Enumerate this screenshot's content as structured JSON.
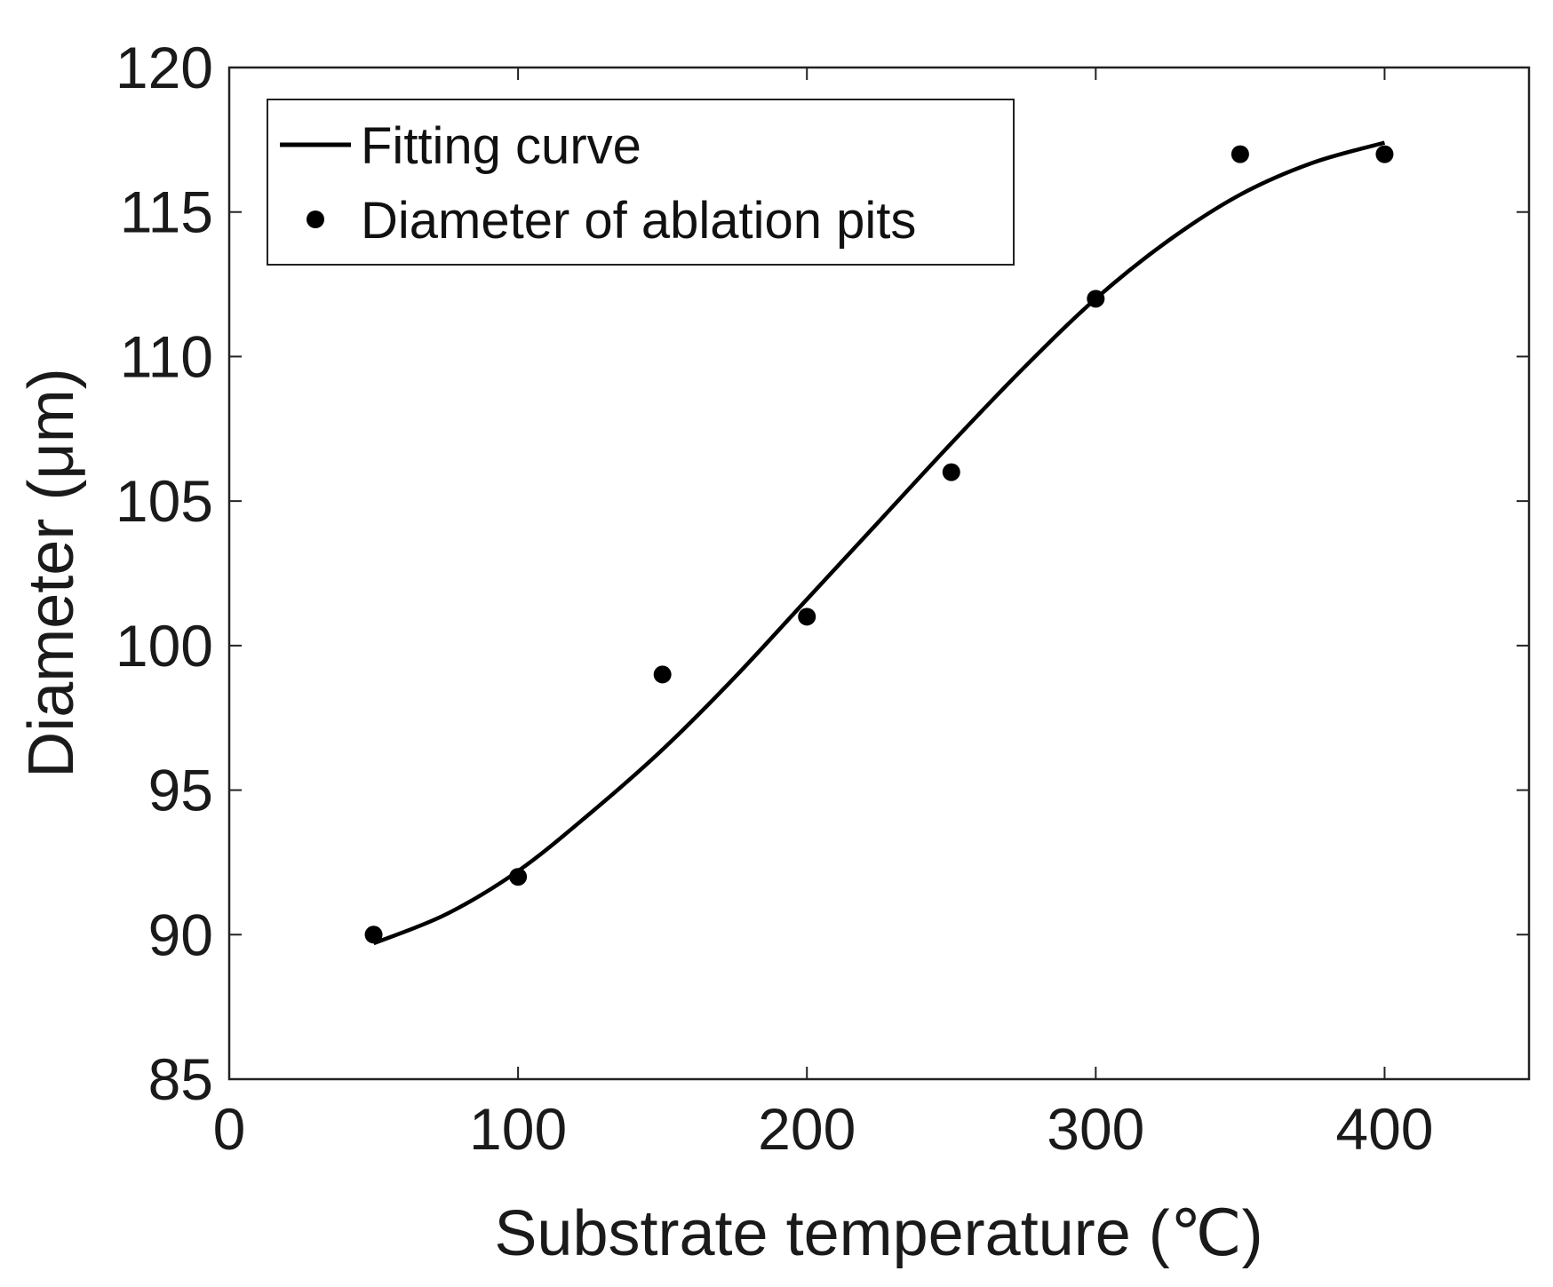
{
  "chart_data": {
    "type": "scatter",
    "title": "",
    "xlabel": "Substrate temperature (℃)",
    "ylabel": "Diameter (μm)",
    "xlim": [
      0,
      450
    ],
    "ylim": [
      85,
      120
    ],
    "xticks": [
      0,
      100,
      200,
      300,
      400
    ],
    "yticks": [
      85,
      90,
      95,
      100,
      105,
      110,
      115,
      120
    ],
    "grid": false,
    "legend_position": "top-left",
    "series": [
      {
        "name": "Fitting curve",
        "kind": "line",
        "color": "#000000",
        "x": [
          50,
          75,
          100,
          125,
          150,
          175,
          200,
          225,
          250,
          275,
          300,
          325,
          350,
          375,
          400
        ],
        "y": [
          89.7,
          90.7,
          92.2,
          94.2,
          96.4,
          98.9,
          101.6,
          104.3,
          107.0,
          109.6,
          112.0,
          114.0,
          115.6,
          116.7,
          117.4
        ]
      },
      {
        "name": "Diameter of ablation pits",
        "kind": "scatter",
        "color": "#000000",
        "x": [
          50,
          100,
          150,
          200,
          250,
          300,
          350,
          400
        ],
        "y": [
          90,
          92,
          99,
          101,
          106,
          112,
          117,
          117
        ]
      }
    ]
  }
}
